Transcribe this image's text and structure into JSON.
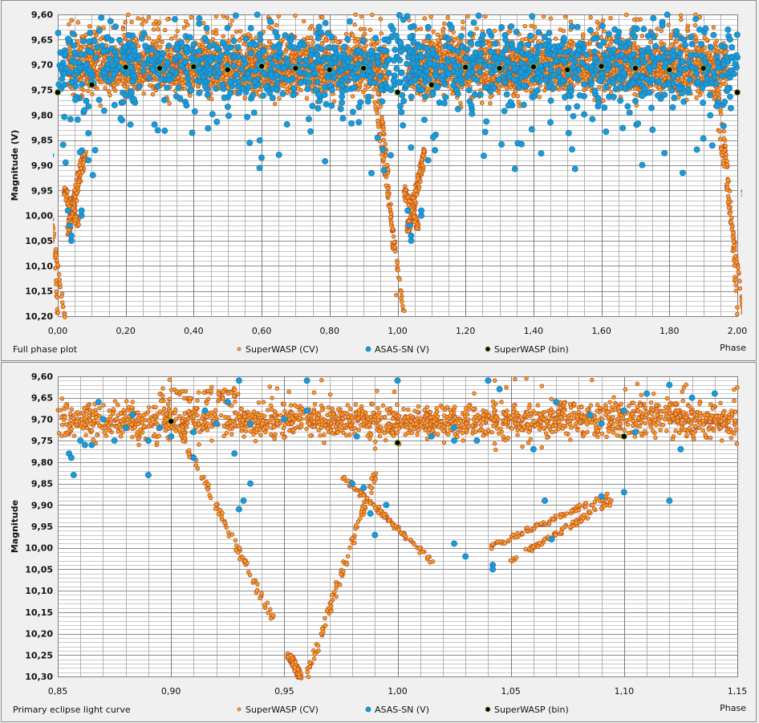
{
  "chart_data": [
    {
      "type": "scatter",
      "title": "Full phase plot",
      "xlabel": "Phase",
      "ylabel": "Magnitude (V)",
      "xlim": [
        0.0,
        2.0
      ],
      "ylim": [
        9.6,
        10.2
      ],
      "y_inverted": true,
      "x_ticks": [
        "0,00",
        "0,20",
        "0,40",
        "0,60",
        "0,80",
        "1,00",
        "1,20",
        "1,40",
        "1,60",
        "1,80",
        "2,00"
      ],
      "y_ticks": [
        "9,60",
        "9,65",
        "9,70",
        "9,75",
        "9,80",
        "9,85",
        "9,90",
        "9,95",
        "10,00",
        "10,05",
        "10,10",
        "10,15",
        "10,20"
      ],
      "x_tick_values": [
        0,
        0.2,
        0.4,
        0.6,
        0.8,
        1.0,
        1.2,
        1.4,
        1.6,
        1.8,
        2.0
      ],
      "y_tick_values": [
        9.6,
        9.65,
        9.7,
        9.75,
        9.8,
        9.85,
        9.9,
        9.95,
        10.0,
        10.05,
        10.1,
        10.15,
        10.2
      ],
      "x_minor_step": 0.05,
      "y_minor_step": 0.01,
      "grid": true,
      "legend": "bottom",
      "legend_entries": [
        "SuperWASP (CV)",
        "ASAS-SN (V)",
        "SuperWASP (bin)"
      ],
      "series": [
        {
          "name": "SuperWASP (CV)",
          "marker": "small-circle",
          "color": "#f5a623",
          "edge": "#c0502a",
          "baseline_mag": 9.705,
          "scatter_mag": 0.025,
          "eclipse_phases": [
            0.0,
            1.0,
            2.0
          ],
          "eclipse_min_mag": 10.2
        },
        {
          "name": "ASAS-SN (V)",
          "marker": "circle",
          "color": "#1a9ad6",
          "edge": "#1878b0",
          "baseline_mag": 9.705,
          "scatter_mag": 0.04
        },
        {
          "name": "SuperWASP (bin)",
          "marker": "circle",
          "color": "#000000",
          "edge": "#8ab43c",
          "points": [
            [
              0.0,
              9.755
            ],
            [
              0.1,
              9.74
            ],
            [
              0.2,
              9.705
            ],
            [
              0.3,
              9.707
            ],
            [
              0.4,
              9.704
            ],
            [
              0.5,
              9.71
            ],
            [
              0.6,
              9.703
            ],
            [
              0.7,
              9.707
            ],
            [
              0.8,
              9.71
            ],
            [
              0.9,
              9.707
            ],
            [
              1.0,
              9.755
            ],
            [
              1.1,
              9.74
            ],
            [
              1.2,
              9.705
            ],
            [
              1.3,
              9.707
            ],
            [
              1.4,
              9.704
            ],
            [
              1.5,
              9.71
            ],
            [
              1.6,
              9.703
            ],
            [
              1.7,
              9.707
            ],
            [
              1.8,
              9.71
            ],
            [
              1.9,
              9.707
            ],
            [
              2.0,
              9.755
            ]
          ]
        }
      ]
    },
    {
      "type": "scatter",
      "title": "Primary eclipse light curve",
      "xlabel": "Phase",
      "ylabel": "Magnitude",
      "xlim": [
        0.85,
        1.15
      ],
      "ylim": [
        9.6,
        10.3
      ],
      "y_inverted": true,
      "x_ticks": [
        "0,85",
        "0,90",
        "0,95",
        "1,00",
        "1,05",
        "1,10",
        "1,15"
      ],
      "y_ticks": [
        "9,60",
        "9,65",
        "9,70",
        "9,75",
        "9,80",
        "9,85",
        "9,90",
        "9,95",
        "10,00",
        "10,05",
        "10,10",
        "10,15",
        "10,20",
        "10,25",
        "10,30"
      ],
      "x_tick_values": [
        0.85,
        0.9,
        0.95,
        1.0,
        1.05,
        1.1,
        1.15
      ],
      "y_tick_values": [
        9.6,
        9.65,
        9.7,
        9.75,
        9.8,
        9.85,
        9.9,
        9.95,
        10.0,
        10.05,
        10.1,
        10.15,
        10.2,
        10.25,
        10.3
      ],
      "x_minor_step": 0.01,
      "y_minor_step": 0.01,
      "grid": true,
      "legend": "bottom",
      "legend_entries": [
        "SuperWASP (CV)",
        "ASAS-SN (V)",
        "SuperWASP (bin)"
      ],
      "series": [
        {
          "name": "SuperWASP (CV)",
          "marker": "small-circle",
          "color": "#f5a623",
          "edge": "#c0502a",
          "baseline_mag": 9.705,
          "scatter_mag": 0.02,
          "tracks": [
            {
              "from": [
                0.905,
                9.74
              ],
              "to": [
                0.945,
                10.17
              ]
            },
            {
              "from": [
                0.952,
                10.25
              ],
              "to": [
                0.957,
                10.3
              ]
            },
            {
              "from": [
                0.96,
                10.3
              ],
              "to": [
                0.99,
                9.83
              ]
            },
            {
              "from": [
                0.975,
                9.83
              ],
              "to": [
                1.015,
                10.03
              ]
            },
            {
              "from": [
                1.04,
                10.0
              ],
              "to": [
                1.092,
                9.88
              ]
            },
            {
              "from": [
                1.05,
                10.03
              ],
              "to": [
                1.095,
                9.89
              ]
            }
          ]
        },
        {
          "name": "ASAS-SN (V)",
          "marker": "circle",
          "color": "#1a9ad6",
          "edge": "#1878b0"
        },
        {
          "name": "SuperWASP (bin)",
          "marker": "circle",
          "color": "#000000",
          "edge": "#8ab43c",
          "points": [
            [
              0.9,
              9.705
            ],
            [
              1.0,
              9.755
            ],
            [
              1.1,
              9.74
            ]
          ]
        }
      ]
    }
  ]
}
